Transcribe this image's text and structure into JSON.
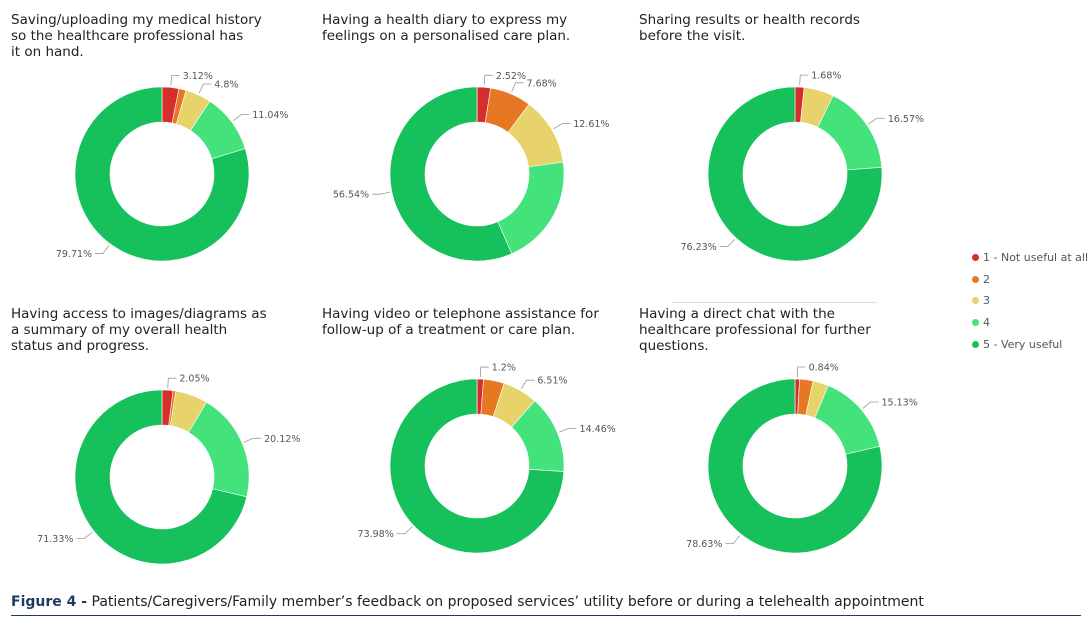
{
  "legend": {
    "items": [
      {
        "label": "1 - Not useful at all",
        "color": "#d62d2d"
      },
      {
        "label": "2",
        "color": "#e67824"
      },
      {
        "label": "3",
        "color": "#e8d36a"
      },
      {
        "label": "4",
        "color": "#44e27a"
      },
      {
        "label": "5 - Very useful",
        "color": "#16c15c"
      }
    ]
  },
  "figure_caption": {
    "prefix": "Figure 4 -",
    "text": " Patients/Caregivers/Family member’s feedback on proposed services’ utility before or during a telehealth appointment"
  },
  "chart_data": [
    {
      "type": "pie",
      "title": "Saving/uploading my medical history so the healthcare professional has it on hand.",
      "categories": [
        "1 - Not useful at all",
        "2",
        "3",
        "4",
        "5 - Very useful"
      ],
      "values": [
        3.12,
        1.33,
        4.8,
        11.04,
        79.71
      ],
      "data_labels": [
        "3.12%",
        "",
        "4.8%",
        "11.04%",
        "79.71%"
      ]
    },
    {
      "type": "pie",
      "title": "Having a health diary to express my feelings on a personalised care plan.",
      "categories": [
        "1 - Not useful at all",
        "2",
        "3",
        "4",
        "5 - Very useful"
      ],
      "values": [
        2.52,
        7.68,
        12.61,
        20.65,
        56.54
      ],
      "data_labels": [
        "2.52%",
        "7.68%",
        "12.61%",
        "",
        "56.54%"
      ]
    },
    {
      "type": "pie",
      "title": "Sharing results or health records before the visit.",
      "categories": [
        "1 - Not useful at all",
        "2",
        "3",
        "4",
        "5 - Very useful"
      ],
      "values": [
        1.68,
        0.0,
        5.52,
        16.57,
        76.23
      ],
      "data_labels": [
        "1.68%",
        "",
        "",
        "16.57%",
        "76.23%"
      ]
    },
    {
      "type": "pie",
      "title": "Having access to images/diagrams as a summary of my overall health status and progress.",
      "categories": [
        "1 - Not useful at all",
        "2",
        "3",
        "4",
        "5 - Very useful"
      ],
      "values": [
        2.05,
        0.5,
        6.0,
        20.12,
        71.33
      ],
      "data_labels": [
        "2.05%",
        "",
        "",
        "20.12%",
        "71.33%"
      ]
    },
    {
      "type": "pie",
      "title": "Having video or telephone assistance for follow-up of a treatment or care plan.",
      "categories": [
        "1 - Not useful at all",
        "2",
        "3",
        "4",
        "5 - Very useful"
      ],
      "values": [
        1.2,
        3.85,
        6.51,
        14.46,
        73.98
      ],
      "data_labels": [
        "1.2%",
        "",
        "6.51%",
        "14.46%",
        "73.98%"
      ]
    },
    {
      "type": "pie",
      "title": "Having a direct chat with the healthcare professional for further questions.",
      "categories": [
        "1 - Not useful at all",
        "2",
        "3",
        "4",
        "5 - Very useful"
      ],
      "values": [
        0.84,
        2.5,
        2.9,
        15.13,
        78.63
      ],
      "data_labels": [
        "0.84%",
        "",
        "",
        "15.13%",
        "78.63%"
      ]
    }
  ]
}
